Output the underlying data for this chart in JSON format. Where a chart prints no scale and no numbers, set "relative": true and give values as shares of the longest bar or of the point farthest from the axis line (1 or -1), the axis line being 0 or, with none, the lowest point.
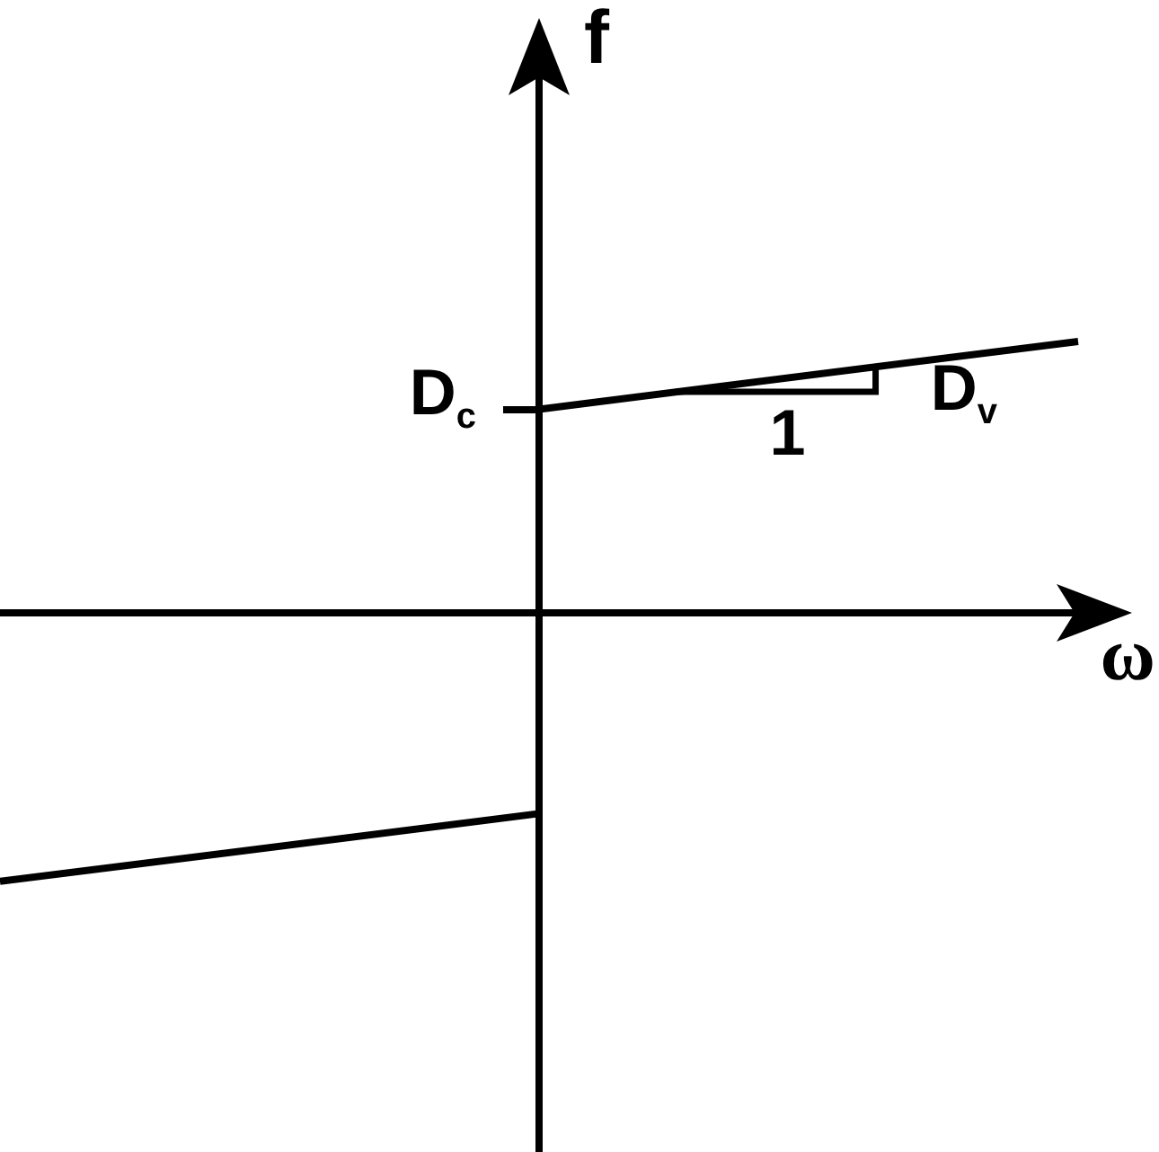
{
  "chart_data": {
    "type": "line",
    "xlabel": "ω",
    "ylabel": "f",
    "categories": [
      null,
      null,
      null
    ],
    "series": [
      {
        "color": "#000000",
        "values": [
          -0.99,
          -0.74,
          null
        ]
      },
      {
        "color": "#000000",
        "values": [
          null,
          0.75,
          1
        ]
      }
    ],
    "relative": true,
    "marker": "none",
    "annotations": [
      "D$_{c}$",
      "1",
      "D$_{v}$"
    ]
  }
}
